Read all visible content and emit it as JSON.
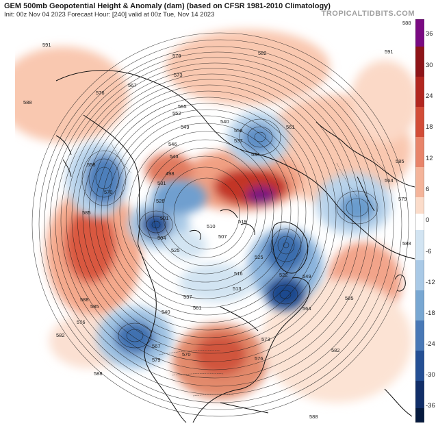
{
  "header": {
    "title": "GEM 500mb Geopotential Height & Anomaly (dam) (based on CFSR 1981-2010 Climatology)",
    "subtitle": "Init: 00z Nov 04 2023   Forecast Hour: [240]   valid at 00z Tue, Nov 14 2023",
    "brand": "TROPICALTIDBITS.COM"
  },
  "colorbar": {
    "labels": [
      "36",
      "30",
      "24",
      "18",
      "12",
      "6",
      "0",
      "-6",
      "-12",
      "-18",
      "-24",
      "-30",
      "-36"
    ],
    "colors": [
      "#7a0a82",
      "#8e1418",
      "#b2261f",
      "#d24c37",
      "#e8846a",
      "#f4b49a",
      "#fbdcca",
      "#ffffff",
      "#d2e4f2",
      "#a9c9e6",
      "#78a7d2",
      "#4878b6",
      "#244f94",
      "#112e68",
      "#061a3e"
    ]
  },
  "contour_labels": [
    "591",
    "588",
    "585",
    "582",
    "579",
    "576",
    "573",
    "570",
    "567",
    "564",
    "561",
    "558",
    "555",
    "552",
    "549",
    "546",
    "543",
    "540",
    "537",
    "534",
    "531",
    "528",
    "525",
    "522",
    "519",
    "516",
    "513",
    "510",
    "507",
    "504",
    "501",
    "498"
  ],
  "anomaly_features": [
    {
      "kind": "positive",
      "name": "Western Europe ridge"
    },
    {
      "kind": "negative",
      "name": "Central Asia trough"
    },
    {
      "kind": "positive",
      "name": "Western Siberia ridge"
    },
    {
      "kind": "negative",
      "name": "Eastern Siberia trough"
    },
    {
      "kind": "positive",
      "name": "Arctic / Laptev ridge"
    },
    {
      "kind": "negative",
      "name": "Northeast Asia trough"
    },
    {
      "kind": "positive",
      "name": "North Pacific ridge"
    },
    {
      "kind": "negative",
      "name": "Canada trough"
    },
    {
      "kind": "negative",
      "name": "Labrador trough"
    },
    {
      "kind": "negative",
      "name": "Alaska / Gulf trough"
    },
    {
      "kind": "positive",
      "name": "Central US ridge"
    },
    {
      "kind": "positive",
      "name": "North Atlantic ridge"
    }
  ]
}
